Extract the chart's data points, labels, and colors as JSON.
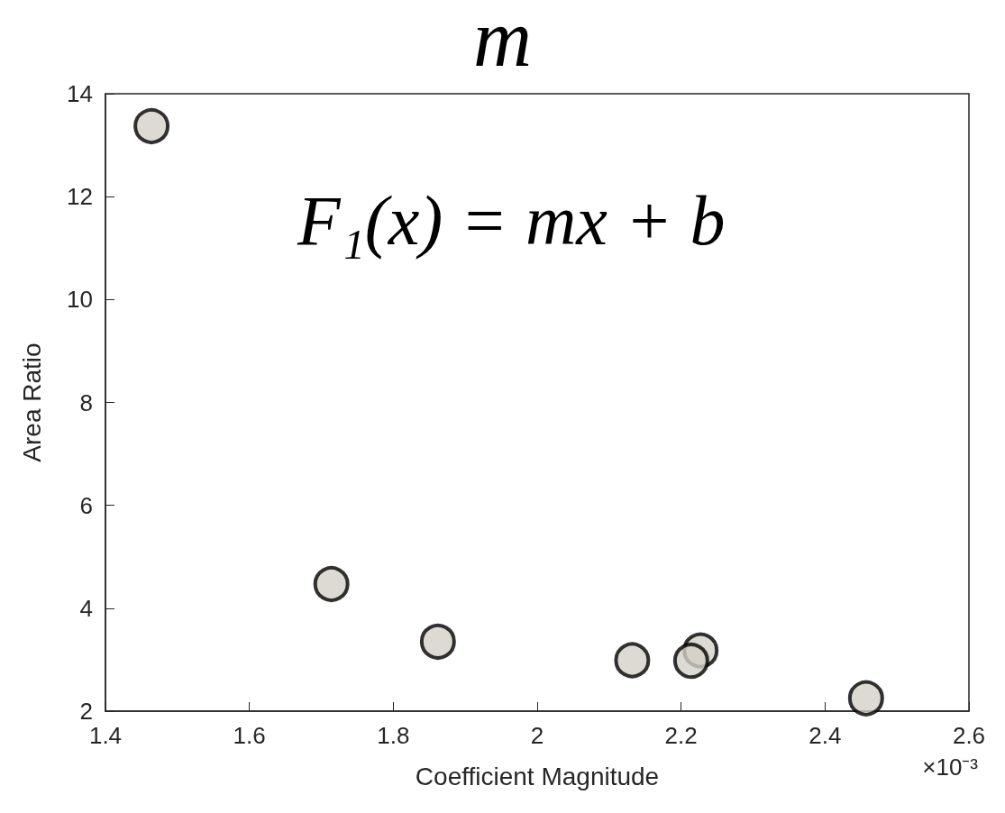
{
  "chart_data": {
    "type": "scatter",
    "title": "m",
    "xlabel": "Coefficient Magnitude",
    "ylabel": "Area Ratio",
    "annotations": [
      "F₁(x) = mx + b",
      "×10⁻³"
    ],
    "x": [
      1.464,
      1.714,
      1.862,
      2.132,
      2.227,
      2.457,
      2.214
    ],
    "values": [
      13.37,
      4.47,
      3.35,
      2.99,
      3.18,
      2.25,
      2.98
    ],
    "color": "#d4d0c8",
    "marker": "circle",
    "xlim": [
      1.4,
      2.6
    ],
    "xticks": [
      1.4,
      1.6,
      1.8,
      2,
      2.2,
      2.4,
      2.6
    ],
    "ylim": [
      2,
      14
    ],
    "yticks": [
      2,
      4,
      6,
      8,
      10,
      12,
      14
    ],
    "grid": false
  }
}
